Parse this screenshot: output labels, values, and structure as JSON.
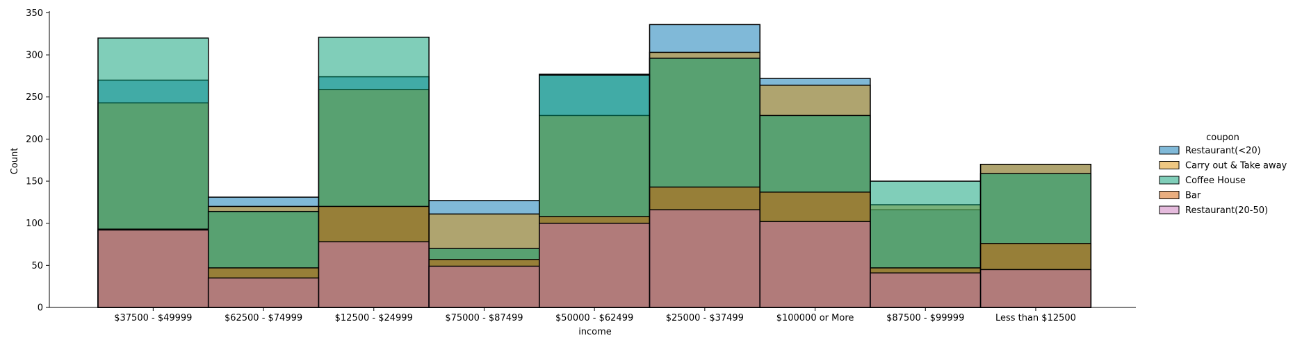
{
  "chart_data": {
    "type": "bar",
    "title": "",
    "xlabel": "income",
    "ylabel": "Count",
    "ylim": [
      0,
      352
    ],
    "yticks": [
      0,
      50,
      100,
      150,
      200,
      250,
      300,
      350
    ],
    "categories": [
      "$37500 - $49999",
      "$62500 - $74999",
      "$12500 - $24999",
      "$75000 - $87499",
      "$50000 - $62499",
      "$25000 - $37499",
      "$100000 or More",
      "$87500 - $99999",
      "Less than $12500"
    ],
    "series": [
      {
        "name": "Restaurant(<20)",
        "color": "#0173b2",
        "values": [
          270,
          131,
          274,
          127,
          277,
          336,
          272,
          116,
          170
        ]
      },
      {
        "name": "Carry out & Take away",
        "color": "#de8f05",
        "values": [
          243,
          120,
          259,
          111,
          228,
          303,
          264,
          122,
          170
        ]
      },
      {
        "name": "Coffee House",
        "color": "#029e73",
        "values": [
          320,
          114,
          321,
          70,
          276,
          296,
          228,
          150,
          159
        ]
      },
      {
        "name": "Bar",
        "color": "#d55e00",
        "values": [
          93,
          47,
          120,
          57,
          108,
          143,
          137,
          47,
          76
        ]
      },
      {
        "name": "Restaurant(20-50)",
        "color": "#cc78bc",
        "values": [
          92,
          35,
          78,
          49,
          100,
          116,
          102,
          41,
          45
        ]
      }
    ],
    "legend": {
      "title": "coupon",
      "placement": "right"
    },
    "grid": false
  }
}
